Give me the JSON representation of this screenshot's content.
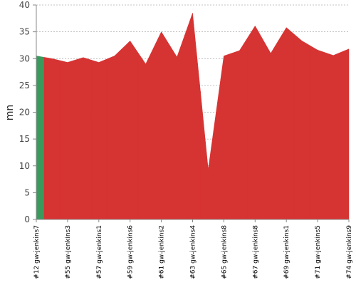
{
  "chart_data": {
    "type": "area",
    "y_label": "mn",
    "categories": [
      "#12 gw-jenkins7",
      null,
      "#55 gw-jenkins3",
      null,
      "#57 gw-jenkins1",
      null,
      "#59 gw-jenkins6",
      null,
      "#61 gw-jenkins2",
      null,
      "#63 gw-jenkins4",
      null,
      "#65 gw-jenkins8",
      null,
      "#67 gw-jenkins8",
      null,
      "#69 gw-jenkins1",
      null,
      "#71 gw-jenkins5",
      null,
      "#74 gw-jenkins9"
    ],
    "values": [
      30.5,
      30.0,
      29.3,
      30.2,
      29.3,
      30.5,
      33.3,
      29.0,
      35.0,
      30.3,
      38.5,
      9.3,
      30.5,
      31.5,
      36.1,
      31.0,
      35.8,
      33.3,
      31.6,
      30.6,
      31.8
    ],
    "colors": [
      "#3a9a5e",
      "#d63333",
      "#d63333",
      "#d63333",
      "#d63333",
      "#d63333",
      "#d63333",
      "#d63333",
      "#d63333",
      "#d63333",
      "#d63333",
      "#d63333",
      "#d63333",
      "#d63333",
      "#d63333",
      "#d63333",
      "#d63333",
      "#d63333",
      "#d63333",
      "#d63333",
      "#d63333"
    ],
    "ylim": [
      0,
      40
    ],
    "yticks": [
      0,
      5,
      10,
      15,
      20,
      25,
      30,
      35,
      40
    ],
    "grid": true
  }
}
